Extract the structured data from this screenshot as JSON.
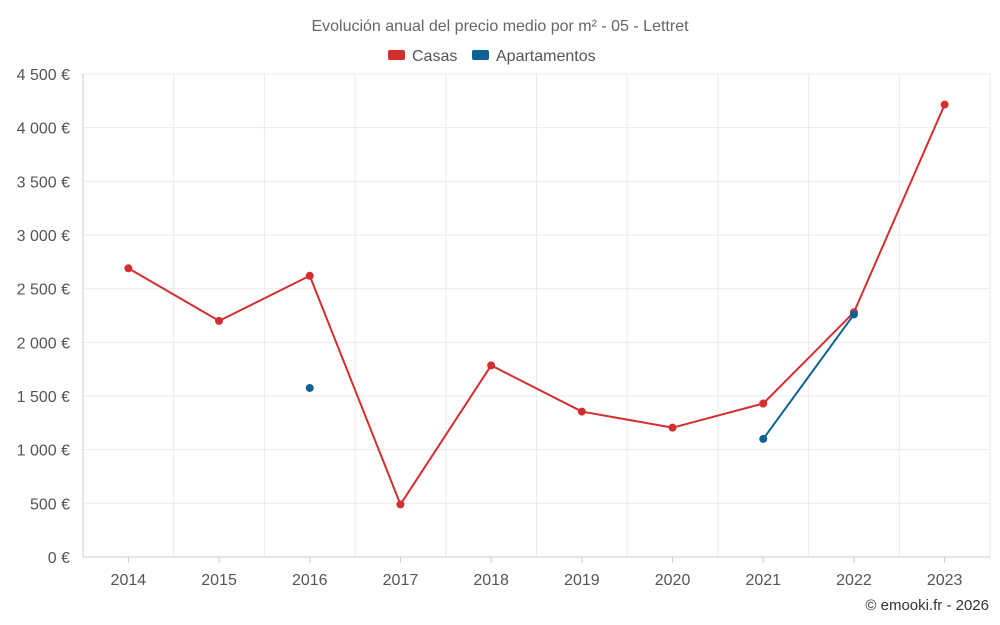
{
  "chart_data": {
    "type": "line",
    "title": "Evolución anual del precio medio por m² - 05 - Lettret",
    "categories": [
      "2014",
      "2015",
      "2016",
      "2017",
      "2018",
      "2019",
      "2020",
      "2021",
      "2022",
      "2023"
    ],
    "series": [
      {
        "name": "Casas",
        "color": "#d32f2f",
        "values": [
          2690,
          2200,
          2620,
          490,
          1785,
          1355,
          1205,
          1430,
          2280,
          4215
        ]
      },
      {
        "name": "Apartamentos",
        "color": "#0d6195",
        "values": [
          null,
          null,
          1575,
          null,
          null,
          null,
          null,
          1100,
          2260,
          null
        ]
      }
    ],
    "ylim": [
      0,
      4500
    ],
    "yticks": [
      0,
      500,
      1000,
      1500,
      2000,
      2500,
      3000,
      3500,
      4000,
      4500
    ],
    "ytick_labels": [
      "0 €",
      "500 €",
      "1 000 €",
      "1 500 €",
      "2 000 €",
      "2 500 €",
      "3 000 €",
      "3 500 €",
      "4 000 €",
      "4 500 €"
    ],
    "xlabel": "",
    "ylabel": "",
    "grid": true,
    "legend_position": "top-center"
  },
  "credit": "© emooki.fr - 2026"
}
